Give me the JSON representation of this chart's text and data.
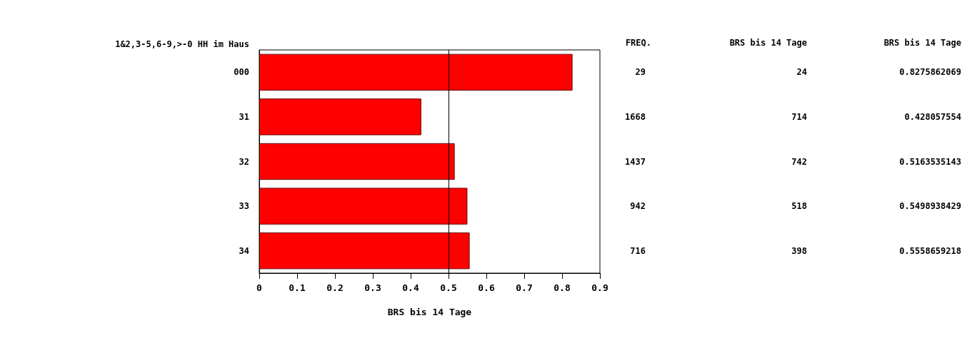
{
  "chart_data": {
    "type": "bar",
    "orientation": "horizontal",
    "ylabel": "1&2,3-5,6-9,>-0 HH im Haus",
    "xlabel": "BRS bis 14 Tage",
    "categories": [
      "000",
      "31",
      "32",
      "33",
      "34"
    ],
    "values": [
      0.8275862069,
      0.428057554,
      0.5163535143,
      0.5498938429,
      0.5558659218
    ],
    "color": "#ff0000",
    "xlim": [
      0,
      0.9
    ],
    "xticks": [
      0,
      0.1,
      0.2,
      0.3,
      0.4,
      0.5,
      0.6,
      0.7,
      0.8,
      0.9
    ],
    "ref_lines": [
      {
        "axis": "x",
        "value": 0.5,
        "color": "#000000"
      }
    ],
    "data_labels": true,
    "grid": false,
    "annotations": [
      "FREQ.",
      "BRS bis 14 Tage",
      "BRS bis 14 Tage",
      "29",
      "24",
      "1668",
      "714",
      "1437",
      "742",
      "942",
      "518",
      "716",
      "398"
    ]
  }
}
